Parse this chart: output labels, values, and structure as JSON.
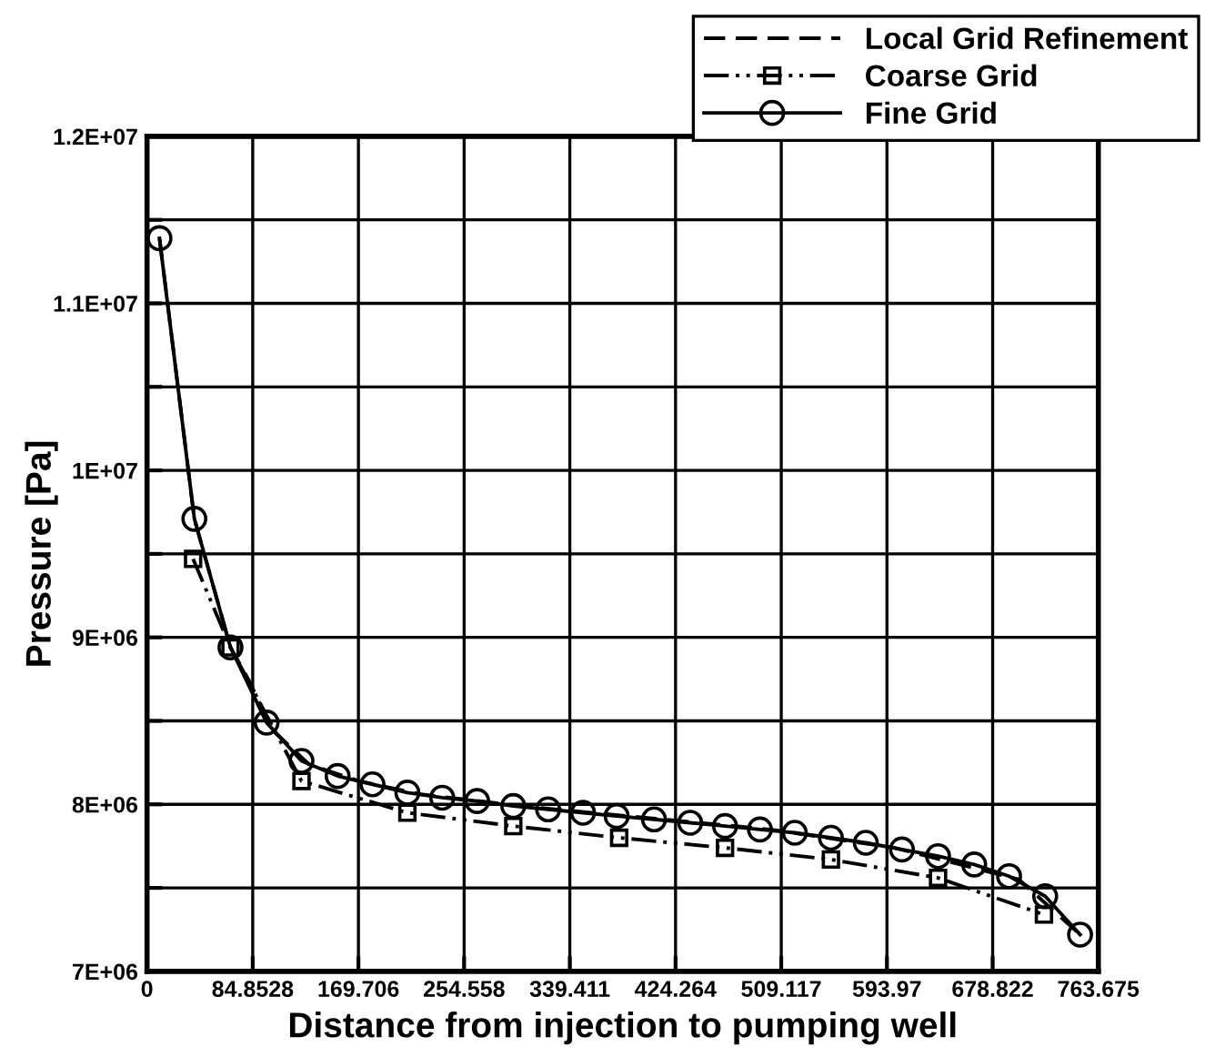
{
  "chart_data": {
    "type": "line",
    "xlabel": "Distance from injection to pumping well",
    "ylabel": "Pressure [Pa]",
    "xlim": [
      0,
      763.675
    ],
    "ylim": [
      7000000,
      12000000
    ],
    "xticks": [
      0,
      84.8528,
      169.706,
      254.558,
      339.411,
      424.264,
      509.117,
      593.97,
      678.822,
      763.675
    ],
    "yticks": [
      {
        "value": 7000000,
        "label": "7E+06"
      },
      {
        "value": 7500000,
        "label": null
      },
      {
        "value": 8000000,
        "label": "8E+06"
      },
      {
        "value": 8500000,
        "label": null
      },
      {
        "value": 9000000,
        "label": "9E+06"
      },
      {
        "value": 9500000,
        "label": null
      },
      {
        "value": 10000000,
        "label": "1E+07"
      },
      {
        "value": 10500000,
        "label": null
      },
      {
        "value": 11000000,
        "label": "1.1E+07"
      },
      {
        "value": 11500000,
        "label": null
      },
      {
        "value": 12000000,
        "label": "1.2E+07"
      }
    ],
    "grid": true,
    "legend": "top right",
    "series": [
      {
        "name": "Local Grid Refinement",
        "color": "#000000",
        "line_style": "dashed",
        "marker": "none",
        "x": [
          10,
          38,
          67,
          82,
          100,
          130,
          170,
          220,
          300,
          400,
          500,
          600,
          700,
          749
        ],
        "values": [
          11390000,
          9710000,
          8940000,
          8740000,
          8450000,
          8240000,
          8140000,
          8060000,
          7990000,
          7920000,
          7850000,
          7740000,
          7550000,
          7220000
        ]
      },
      {
        "name": "Coarse Grid",
        "color": "#000000",
        "line_style": "dashdotdot",
        "marker": "square",
        "x": [
          37,
          67,
          124,
          209,
          294,
          379,
          464,
          549,
          635,
          720
        ],
        "values": [
          9470000,
          8940000,
          8140000,
          7950000,
          7870000,
          7800000,
          7740000,
          7670000,
          7560000,
          7340000
        ]
      },
      {
        "name": "Fine Grid",
        "color": "#000000",
        "line_style": "solid",
        "marker": "circle",
        "x": [
          10,
          38,
          67,
          96,
          124,
          153,
          181,
          209,
          237,
          265,
          294,
          322,
          350,
          377,
          407,
          436,
          464,
          492,
          520,
          549,
          577,
          606,
          635,
          664,
          692,
          721,
          749
        ],
        "values": [
          11390000,
          9710000,
          8940000,
          8490000,
          8260000,
          8170000,
          8120000,
          8070000,
          8040000,
          8020000,
          7990000,
          7970000,
          7950000,
          7930000,
          7910000,
          7890000,
          7870000,
          7850000,
          7830000,
          7800000,
          7770000,
          7730000,
          7690000,
          7640000,
          7570000,
          7450000,
          7220000
        ]
      }
    ]
  }
}
